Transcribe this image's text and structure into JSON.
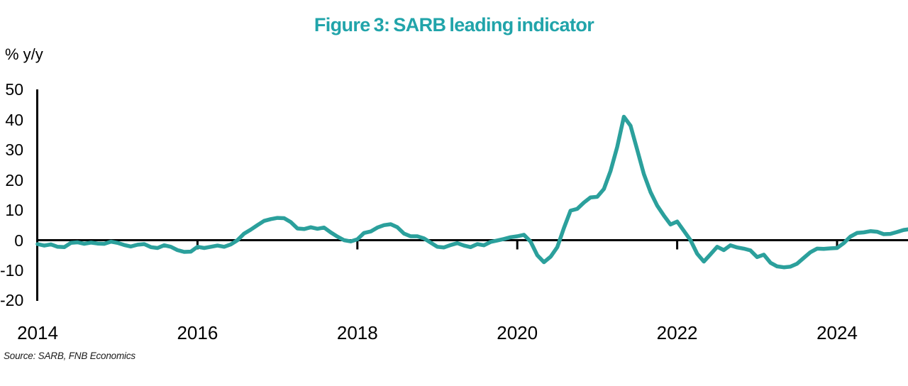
{
  "title": "Figure 3: SARB leading indicator",
  "y_axis_label": "% y/y",
  "source": "Source: SARB, FNB Economics",
  "colors": {
    "title": "#21A4AA",
    "line": "#2BA09C",
    "axis": "#000000"
  },
  "chart_data": {
    "type": "line",
    "title": "Figure 3: SARB leading indicator",
    "ylabel": "% y/y",
    "series_name": "SARB leading indicator, % y/y",
    "frequency": "monthly",
    "x_start_year": 2014,
    "x_start_month": 1,
    "x_ticks": [
      2014,
      2016,
      2018,
      2020,
      2022,
      2024
    ],
    "y_ticks": [
      50,
      40,
      30,
      20,
      10,
      0,
      -10,
      -20
    ],
    "ylim": [
      -20,
      50
    ],
    "grid": false,
    "legend": "none",
    "values": [
      -1.3,
      -1.8,
      -1.4,
      -2.2,
      -2.3,
      -0.9,
      -0.7,
      -1.2,
      -0.8,
      -1.1,
      -1.2,
      -0.5,
      -0.9,
      -1.6,
      -2.1,
      -1.5,
      -1.3,
      -2.3,
      -2.6,
      -1.7,
      -2.2,
      -3.3,
      -3.9,
      -3.8,
      -2.2,
      -2.6,
      -2.2,
      -1.8,
      -2.2,
      -1.4,
      0.0,
      2.2,
      3.5,
      5.0,
      6.4,
      7.0,
      7.4,
      7.3,
      6.0,
      3.9,
      3.7,
      4.3,
      3.8,
      4.2,
      2.6,
      1.2,
      0.0,
      -0.4,
      0.3,
      2.4,
      2.9,
      4.2,
      5.0,
      5.3,
      4.3,
      2.2,
      1.3,
      1.3,
      0.6,
      -0.8,
      -2.2,
      -2.4,
      -1.6,
      -1.0,
      -1.8,
      -2.3,
      -1.3,
      -1.7,
      -0.6,
      -0.1,
      0.4,
      1.0,
      1.3,
      1.8,
      -0.5,
      -5.0,
      -7.3,
      -5.5,
      -2.3,
      4.0,
      9.8,
      10.4,
      12.5,
      14.2,
      14.4,
      17.0,
      23.0,
      31.0,
      41.0,
      38.0,
      30.0,
      22.0,
      16.0,
      11.5,
      8.2,
      5.2,
      6.2,
      3.1,
      0.0,
      -4.5,
      -7.1,
      -4.7,
      -2.2,
      -3.3,
      -1.7,
      -2.4,
      -2.8,
      -3.4,
      -5.6,
      -4.8,
      -7.5,
      -8.7,
      -9.0,
      -8.8,
      -7.8,
      -5.9,
      -4.0,
      -2.8,
      -2.9,
      -2.7,
      -2.6,
      -1.0,
      1.2,
      2.4,
      2.6,
      3.0,
      2.8,
      2.0,
      2.1,
      2.7,
      3.4,
      3.7
    ]
  }
}
